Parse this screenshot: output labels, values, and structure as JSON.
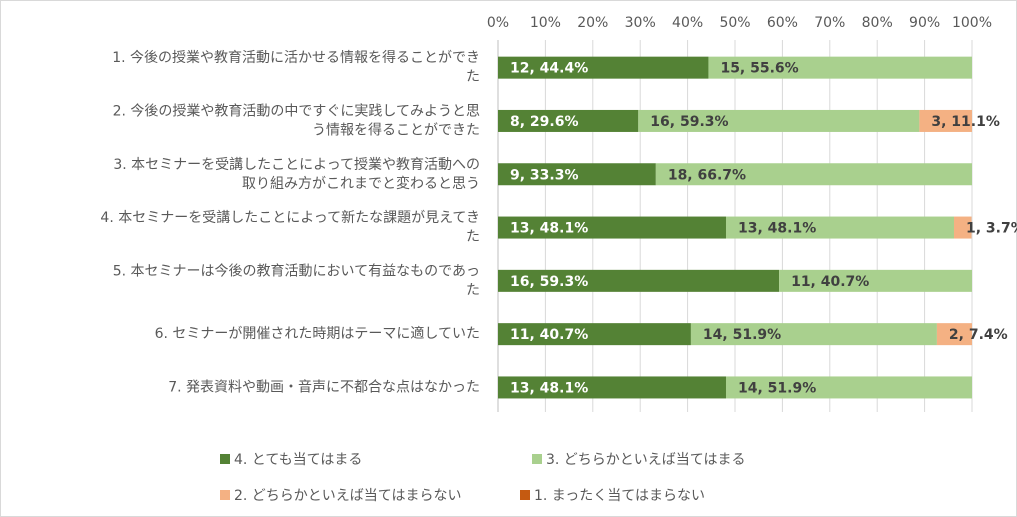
{
  "chart_data": {
    "type": "bar",
    "orientation": "horizontal",
    "stacked": "percent",
    "x_ticks": [
      "0%",
      "10%",
      "20%",
      "30%",
      "40%",
      "50%",
      "60%",
      "70%",
      "80%",
      "90%",
      "100%"
    ],
    "xlim": [
      0,
      100
    ],
    "grid": true,
    "legend_position": "bottom",
    "categories": [
      [
        "1. 今後の授業や教育活動に活かせる情報を得ることができ",
        "た"
      ],
      [
        "2. 今後の授業や教育活動の中ですぐに実践してみようと思",
        "う情報を得ることができた"
      ],
      [
        "3. 本セミナーを受講したことによって授業や教育活動への",
        "取り組み方がこれまでと変わると思う"
      ],
      [
        "4. 本セミナーを受講したことによって新たな課題が見えてき",
        "た"
      ],
      [
        "5. 本セミナーは今後の教育活動において有益なものであっ",
        "た"
      ],
      [
        "6. セミナーが開催された時期はテーマに適していた"
      ],
      [
        "7. 発表資料や動画・音声に不都合な点はなかった"
      ]
    ],
    "series": [
      {
        "name": "4. とても当てはまる",
        "color": "#548235",
        "counts": [
          12,
          8,
          9,
          13,
          16,
          11,
          13
        ],
        "values": [
          44.4,
          29.6,
          33.3,
          48.1,
          59.3,
          40.7,
          48.1
        ],
        "labels": [
          "12, 44.4%",
          "8, 29.6%",
          "9, 33.3%",
          "13, 48.1%",
          "16, 59.3%",
          "11, 40.7%",
          "13, 48.1%"
        ]
      },
      {
        "name": "3. どちらかといえば当てはまる",
        "color": "#a9d08e",
        "counts": [
          15,
          16,
          18,
          13,
          11,
          14,
          14
        ],
        "values": [
          55.6,
          59.3,
          66.7,
          48.1,
          40.7,
          51.9,
          51.9
        ],
        "labels": [
          "15, 55.6%",
          "16, 59.3%",
          "18, 66.7%",
          "13, 48.1%",
          "11, 40.7%",
          "14, 51.9%",
          "14, 51.9%"
        ]
      },
      {
        "name": "2. どちらかといえば当てはまらない",
        "color": "#f4b183",
        "counts": [
          0,
          3,
          0,
          1,
          0,
          2,
          0
        ],
        "values": [
          0,
          11.1,
          0,
          3.7,
          0,
          7.4,
          0
        ],
        "labels": [
          "",
          "3, 11.1%",
          "",
          "1, 3.7%",
          "",
          "2, 7.4%",
          ""
        ]
      },
      {
        "name": "1. まったく当てはまらない",
        "color": "#c55a11",
        "counts": [
          0,
          0,
          0,
          0,
          0,
          0,
          0
        ],
        "values": [
          0,
          0,
          0,
          0,
          0,
          0,
          0
        ],
        "labels": [
          "",
          "",
          "",
          "",
          "",
          "",
          ""
        ]
      }
    ]
  }
}
